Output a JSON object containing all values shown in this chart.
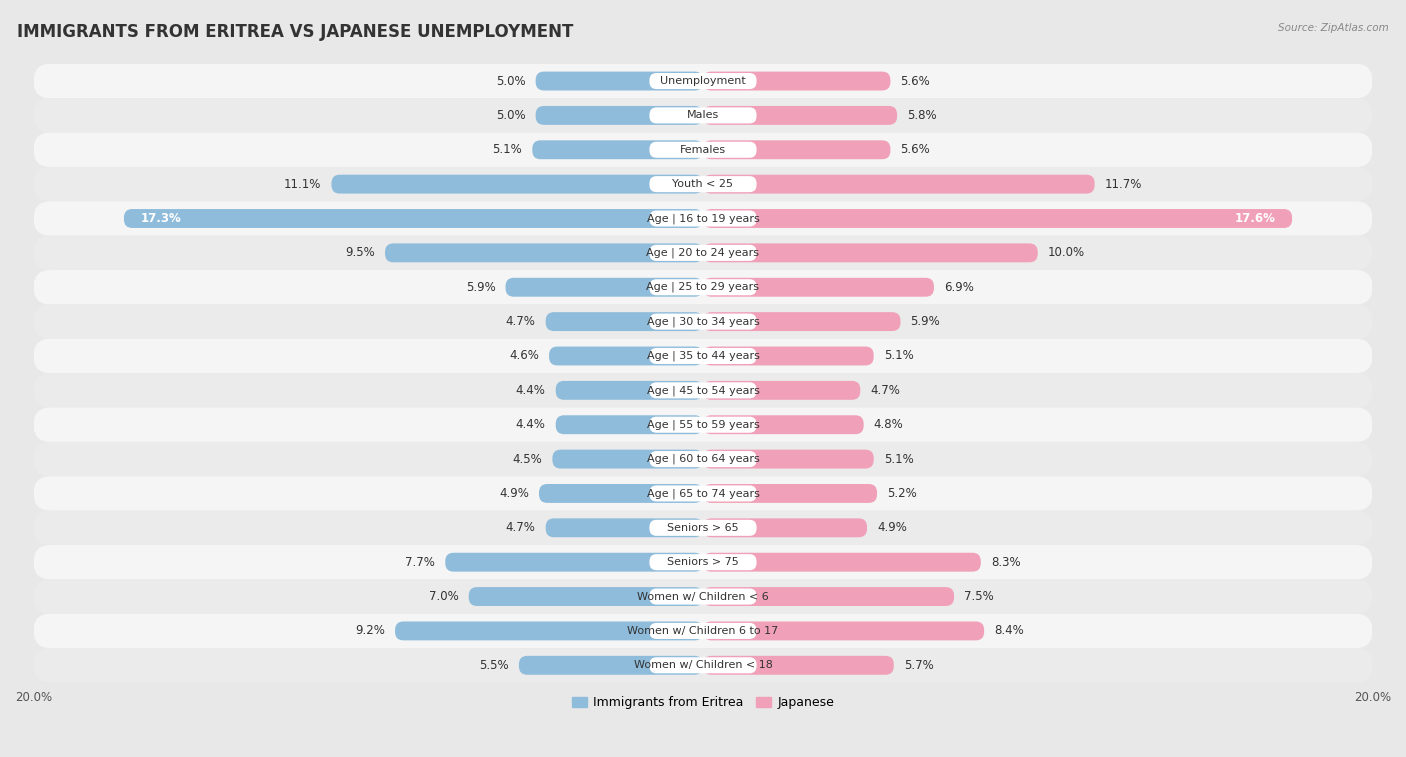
{
  "title": "IMMIGRANTS FROM ERITREA VS JAPANESE UNEMPLOYMENT",
  "source": "Source: ZipAtlas.com",
  "categories": [
    "Unemployment",
    "Males",
    "Females",
    "Youth < 25",
    "Age | 16 to 19 years",
    "Age | 20 to 24 years",
    "Age | 25 to 29 years",
    "Age | 30 to 34 years",
    "Age | 35 to 44 years",
    "Age | 45 to 54 years",
    "Age | 55 to 59 years",
    "Age | 60 to 64 years",
    "Age | 65 to 74 years",
    "Seniors > 65",
    "Seniors > 75",
    "Women w/ Children < 6",
    "Women w/ Children 6 to 17",
    "Women w/ Children < 18"
  ],
  "eritrea_values": [
    5.0,
    5.0,
    5.1,
    11.1,
    17.3,
    9.5,
    5.9,
    4.7,
    4.6,
    4.4,
    4.4,
    4.5,
    4.9,
    4.7,
    7.7,
    7.0,
    9.2,
    5.5
  ],
  "japanese_values": [
    5.6,
    5.8,
    5.6,
    11.7,
    17.6,
    10.0,
    6.9,
    5.9,
    5.1,
    4.7,
    4.8,
    5.1,
    5.2,
    4.9,
    8.3,
    7.5,
    8.4,
    5.7
  ],
  "eritrea_color": "#8fbcdb",
  "japanese_color": "#f0a0b8",
  "background_color": "#e8e8e8",
  "row_colors": [
    "#f5f5f5",
    "#ebebeb"
  ],
  "label_eritrea": "Immigrants from Eritrea",
  "label_japanese": "Japanese",
  "title_fontsize": 12,
  "label_fontsize": 8.5,
  "value_fontsize": 8.5,
  "source_fontsize": 7.5,
  "max_val": 20.0
}
